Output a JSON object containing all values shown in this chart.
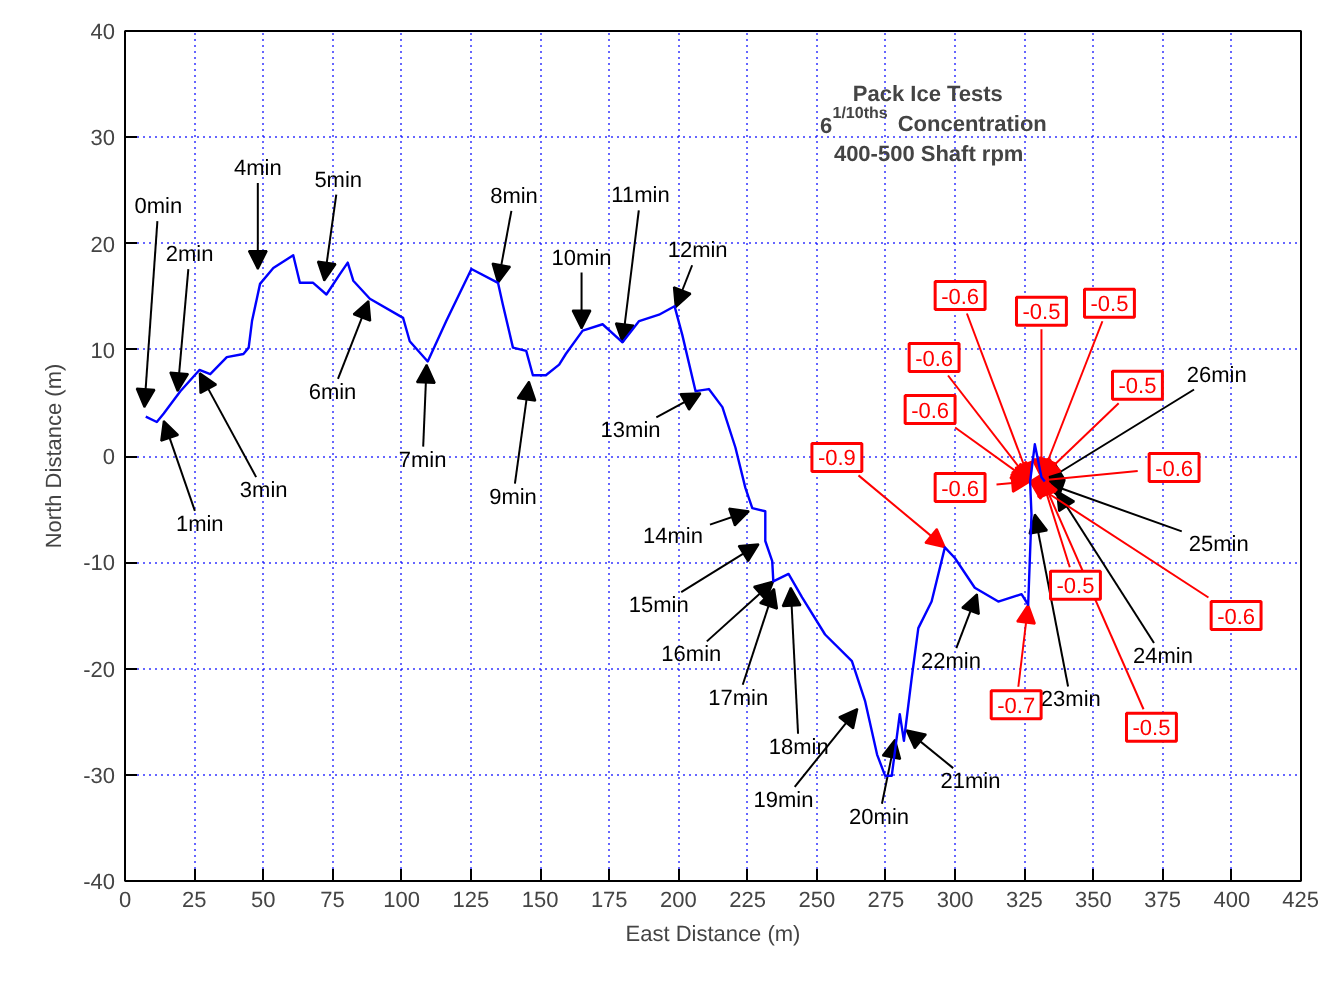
{
  "chart_data": {
    "type": "line",
    "title": "Pack Ice Tests",
    "subtitle": "6$^{1/10ths}$ Concentration\n400-500 Shaft rpm",
    "xlabel": "East Distance (m)",
    "ylabel": "North Distance (m)",
    "x": [
      7.5,
      11.5,
      14,
      20,
      26.9,
      30.8,
      36.8,
      42.8,
      44.7,
      45.9,
      48.8,
      53.6,
      60.8,
      63.2,
      68,
      72.8,
      77.6,
      80.5,
      82.5,
      88.5,
      100.5,
      102.9,
      109.4,
      116.1,
      125.2,
      134.8,
      136.5,
      140.2,
      145,
      147.4,
      152.1,
      156.9,
      159.3,
      165.4,
      172.6,
      179.8,
      185.8,
      193,
      198.6,
      201.4,
      206.2,
      211,
      215.9,
      220.6,
      224.2,
      226.7,
      231.4,
      231.4,
      233.9,
      234.3,
      239.8,
      244.7,
      253,
      262.7,
      267.5,
      271.8,
      274.7,
      277.1,
      280,
      281.5,
      284.3,
      286.7,
      291.5,
      296.3,
      299.9,
      307.1,
      315.6,
      324,
      326.4,
      327.6,
      327.1,
      328.8,
      331.2,
      332.4
    ],
    "series": [
      {
        "color": "#0000ff",
        "values": [
          3.7,
          3.2,
          4,
          6.1,
          8.1,
          7.7,
          9.3,
          9.6,
          10.2,
          12.7,
          16.2,
          17.7,
          18.9,
          16.3,
          16.3,
          15.2,
          17.1,
          18.2,
          16.5,
          14.8,
          13,
          10.8,
          8.9,
          12.7,
          17.6,
          16.3,
          14.3,
          10.2,
          9.9,
          7.6,
          7.6,
          8.6,
          9.6,
          11.8,
          12.4,
          10.7,
          12.7,
          13.3,
          14.1,
          11.4,
          6.1,
          6.3,
          4.6,
          0.8,
          -3,
          -4.9,
          -5.2,
          -8,
          -9.9,
          -11.8,
          -11.1,
          -13.3,
          -16.8,
          -19.3,
          -23.1,
          -28.1,
          -30.1,
          -30.1,
          -24.3,
          -26.8,
          -20.9,
          -16.2,
          -13.7,
          -8.6,
          -9.6,
          -12.4,
          -13.7,
          -13,
          -14,
          -5.5,
          -2.4,
          1.1,
          -2,
          -2.4
        ]
      }
    ],
    "xlim": [
      0,
      425
    ],
    "ylim": [
      -40,
      40
    ],
    "xticks": [
      0,
      25,
      50,
      75,
      100,
      125,
      150,
      175,
      200,
      225,
      250,
      275,
      300,
      325,
      350,
      375,
      400,
      425
    ],
    "yticks": [
      -40,
      -30,
      -20,
      -10,
      0,
      10,
      20,
      30,
      40
    ],
    "grid": true,
    "line_style": "solid",
    "annotations": [
      {
        "text": "0min",
        "x": 7,
        "y": 4.6
      },
      {
        "text": "1min",
        "x": 14,
        "y": 3.3
      },
      {
        "text": "2min",
        "x": 19,
        "y": 6.1
      },
      {
        "text": "3min",
        "x": 27,
        "y": 7.8
      },
      {
        "text": "4min",
        "x": 48,
        "y": 17.6
      },
      {
        "text": "5min",
        "x": 72,
        "y": 16.5
      },
      {
        "text": "6min",
        "x": 88,
        "y": 14.6
      },
      {
        "text": "7min",
        "x": 109,
        "y": 8.6
      },
      {
        "text": "8min",
        "x": 134.8,
        "y": 16.3
      },
      {
        "text": "9min",
        "x": 146,
        "y": 7
      },
      {
        "text": "10min",
        "x": 165,
        "y": 12
      },
      {
        "text": "11min",
        "x": 179.8,
        "y": 10.7
      },
      {
        "text": "12min",
        "x": 199,
        "y": 14
      },
      {
        "text": "13min",
        "x": 208,
        "y": 5.9
      },
      {
        "text": "14min",
        "x": 225.5,
        "y": -5.2
      },
      {
        "text": "15min",
        "x": 229,
        "y": -8.3
      },
      {
        "text": "16min",
        "x": 234.3,
        "y": -11.8
      },
      {
        "text": "17min",
        "x": 234.6,
        "y": -12.5
      },
      {
        "text": "18min",
        "x": 240.6,
        "y": -12.4
      },
      {
        "text": "19min",
        "x": 264.7,
        "y": -23.8
      },
      {
        "text": "20min",
        "x": 278.3,
        "y": -26.7
      },
      {
        "text": "21min",
        "x": 282.4,
        "y": -25.8
      },
      {
        "text": "22min",
        "x": 307.9,
        "y": -13
      },
      {
        "text": "23min",
        "x": 328.8,
        "y": -5.5
      },
      {
        "text": "24min",
        "x": 336.8,
        "y": -3.3
      },
      {
        "text": "25min",
        "x": 332.4,
        "y": -2.5
      },
      {
        "text": "26min",
        "x": 332.4,
        "y": -2.4
      },
      {
        "text": "-0.9",
        "x": 296.3,
        "y": -8.6
      },
      {
        "text": "-0.6",
        "x": 327.1,
        "y": -2.4
      },
      {
        "text": "-0.5",
        "x": 331.2,
        "y": -2
      },
      {
        "text": "-0.5",
        "x": 331.2,
        "y": -2
      },
      {
        "text": "-0.6",
        "x": 327.1,
        "y": -2.4
      },
      {
        "text": "-0.5",
        "x": 331.2,
        "y": -2
      },
      {
        "text": "-0.6",
        "x": 327.1,
        "y": -2.4
      },
      {
        "text": "-0.6",
        "x": 327.1,
        "y": -2.4
      },
      {
        "text": "-0.6",
        "x": 327.1,
        "y": -2.4
      },
      {
        "text": "-0.6",
        "x": 327.1,
        "y": -2.4
      },
      {
        "text": "-0.5",
        "x": 331.2,
        "y": -2
      },
      {
        "text": "-0.5",
        "x": 331.2,
        "y": -2
      },
      {
        "text": "-0.7",
        "x": 326.4,
        "y": -14
      }
    ]
  }
}
